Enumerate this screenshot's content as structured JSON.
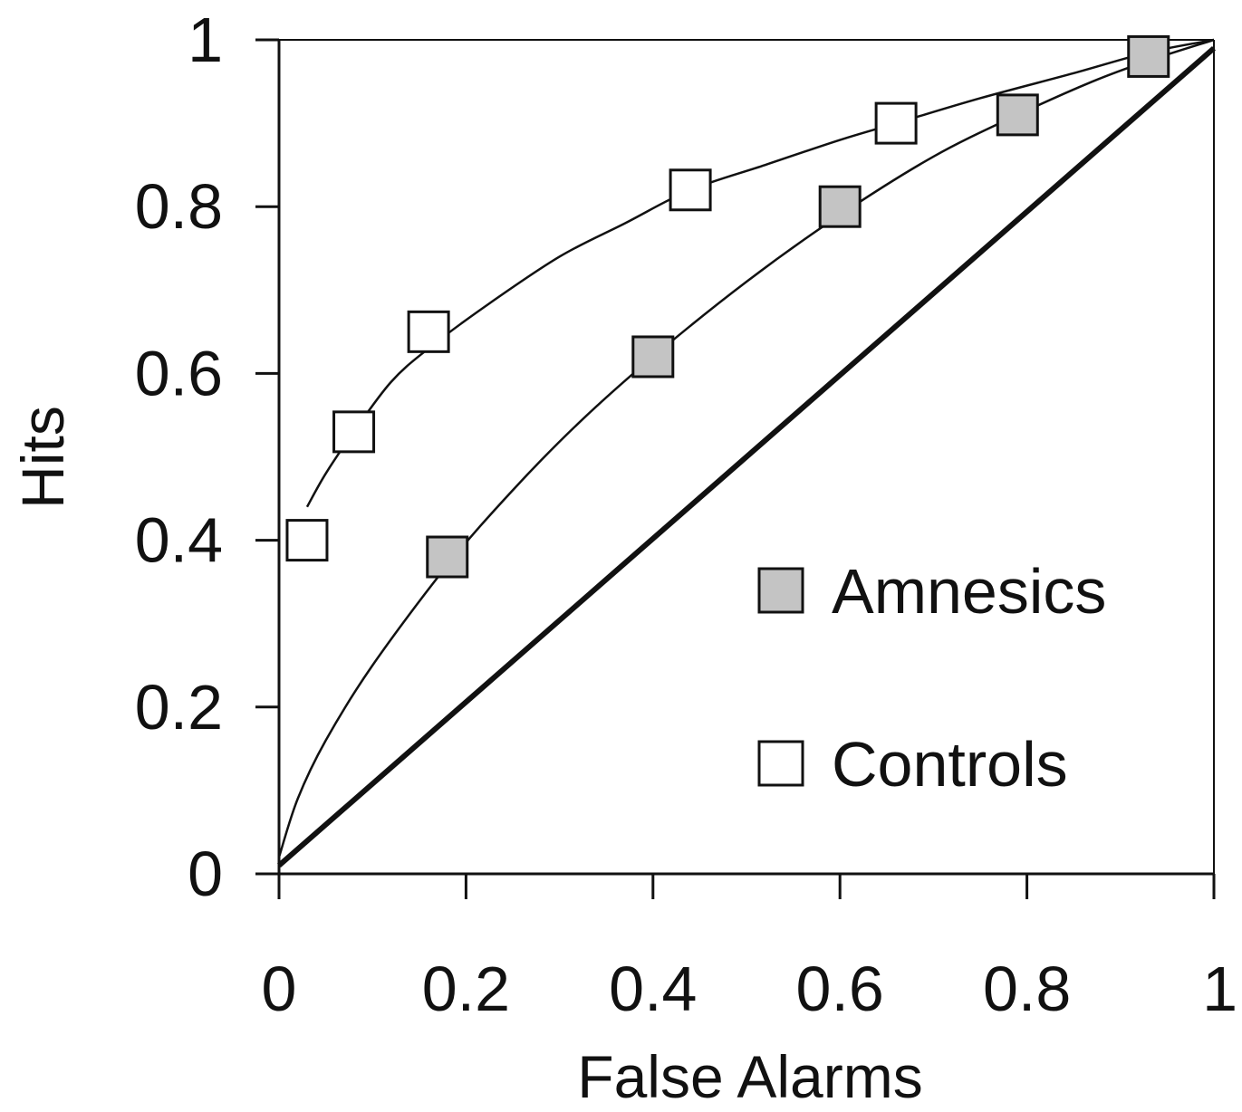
{
  "chart_data": {
    "type": "line",
    "xlabel": "False Alarms",
    "ylabel": "Hits",
    "xlim": [
      0,
      1
    ],
    "ylim": [
      0,
      1
    ],
    "x_ticks": [
      "0",
      "0.2",
      "0.4",
      "0.6",
      "0.8",
      "1"
    ],
    "y_ticks": [
      "0",
      "0.2",
      "0.4",
      "0.6",
      "0.8",
      "1"
    ],
    "grid": false,
    "legend_position": "lower-right inside plot",
    "chance_line": [
      [
        0.0,
        0.01
      ],
      [
        1.0,
        0.99
      ]
    ],
    "series": [
      {
        "name": "Amnesics",
        "marker": "square",
        "fill": "#c4c4c4",
        "points": [
          {
            "x": 0.18,
            "y": 0.38
          },
          {
            "x": 0.4,
            "y": 0.62
          },
          {
            "x": 0.6,
            "y": 0.8
          },
          {
            "x": 0.79,
            "y": 0.91
          },
          {
            "x": 0.93,
            "y": 0.98
          }
        ],
        "curve": [
          [
            0.0,
            0.02
          ],
          [
            0.02,
            0.09
          ],
          [
            0.05,
            0.16
          ],
          [
            0.1,
            0.25
          ],
          [
            0.18,
            0.37
          ],
          [
            0.25,
            0.46
          ],
          [
            0.32,
            0.54
          ],
          [
            0.4,
            0.62
          ],
          [
            0.5,
            0.71
          ],
          [
            0.6,
            0.79
          ],
          [
            0.7,
            0.86
          ],
          [
            0.79,
            0.91
          ],
          [
            0.87,
            0.95
          ],
          [
            0.93,
            0.975
          ],
          [
            1.0,
            1.0
          ]
        ]
      },
      {
        "name": "Controls",
        "marker": "square",
        "fill": "#ffffff",
        "points": [
          {
            "x": 0.03,
            "y": 0.4
          },
          {
            "x": 0.08,
            "y": 0.53
          },
          {
            "x": 0.16,
            "y": 0.65
          },
          {
            "x": 0.44,
            "y": 0.82
          },
          {
            "x": 0.66,
            "y": 0.9
          }
        ],
        "curve": [
          [
            0.03,
            0.44
          ],
          [
            0.05,
            0.48
          ],
          [
            0.08,
            0.53
          ],
          [
            0.12,
            0.59
          ],
          [
            0.16,
            0.63
          ],
          [
            0.22,
            0.68
          ],
          [
            0.3,
            0.74
          ],
          [
            0.37,
            0.78
          ],
          [
            0.44,
            0.82
          ],
          [
            0.52,
            0.85
          ],
          [
            0.6,
            0.88
          ],
          [
            0.66,
            0.9
          ],
          [
            0.75,
            0.93
          ],
          [
            0.85,
            0.96
          ],
          [
            0.93,
            0.985
          ],
          [
            1.0,
            1.0
          ]
        ]
      }
    ]
  }
}
